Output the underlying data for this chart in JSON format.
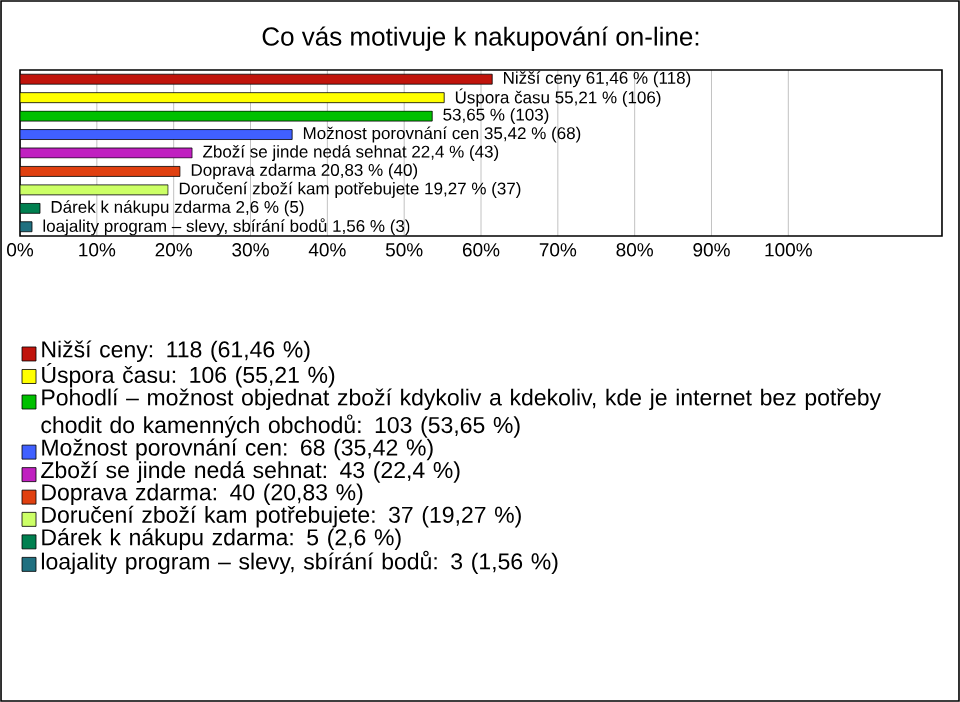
{
  "chart_data": {
    "type": "bar",
    "orientation": "horizontal",
    "title": "Co vás motivuje k nakupování on-line:",
    "categories": [
      null,
      null,
      null,
      null,
      null,
      null,
      null,
      null,
      null
    ],
    "xlim": [
      0,
      120
    ],
    "xticks": [
      {
        "value": 0,
        "label": "0%"
      },
      {
        "value": 10,
        "label": "10%"
      },
      {
        "value": 20,
        "label": "20%"
      },
      {
        "value": 30,
        "label": "30%"
      },
      {
        "value": 40,
        "label": "40%"
      },
      {
        "value": 50,
        "label": "50%"
      },
      {
        "value": 60,
        "label": "60%"
      },
      {
        "value": 70,
        "label": "70%"
      },
      {
        "value": 80,
        "label": "80%"
      },
      {
        "value": 90,
        "label": "90%"
      },
      {
        "value": 100,
        "label": "100%"
      }
    ],
    "grid": "x",
    "legend": "bottom",
    "series": [
      {
        "name": "Nižší ceny: 118 (61,46 %)",
        "color": "#c0140c",
        "values": [
          61.46,
          null,
          null,
          null,
          null,
          null,
          null,
          null,
          null
        ],
        "value_labels": [
          "Nižší ceny 61,46 % (118)",
          null,
          null,
          null,
          null,
          null,
          null,
          null,
          null
        ]
      },
      {
        "name": "Úspora času: 106 (55,21 %)",
        "color": "#ffff00",
        "values": [
          null,
          55.21,
          null,
          null,
          null,
          null,
          null,
          null,
          null
        ],
        "value_labels": [
          null,
          "Úspora času 55,21 % (106)",
          null,
          null,
          null,
          null,
          null,
          null,
          null
        ]
      },
      {
        "name": "Pohodlí – možnost objednat zboží kdykoliv a kdekoliv, kde je internet bez potřeby chodit do kamenných obchodů: 103 (53,65 %)",
        "color": "#00c000",
        "values": [
          null,
          null,
          53.65,
          null,
          null,
          null,
          null,
          null,
          null
        ],
        "value_labels": [
          null,
          null,
          "53,65 % (103)",
          null,
          null,
          null,
          null,
          null,
          null
        ]
      },
      {
        "name": "Možnost porovnání cen: 68 (35,42 %)",
        "color": "#4060ff",
        "values": [
          null,
          null,
          null,
          35.42,
          null,
          null,
          null,
          null,
          null
        ],
        "value_labels": [
          null,
          null,
          null,
          "Možnost porovnání cen 35,42 % (68)",
          null,
          null,
          null,
          null,
          null
        ]
      },
      {
        "name": "Zboží se jinde nedá sehnat: 43 (22,4 %)",
        "color": "#c020c0",
        "values": [
          null,
          null,
          null,
          null,
          22.4,
          null,
          null,
          null,
          null
        ],
        "value_labels": [
          null,
          null,
          null,
          null,
          "Zboží se jinde nedá sehnat 22,4 % (43)",
          null,
          null,
          null,
          null
        ]
      },
      {
        "name": "Doprava zdarma: 40 (20,83 %)",
        "color": "#e04010",
        "values": [
          null,
          null,
          null,
          null,
          null,
          20.83,
          null,
          null,
          null
        ],
        "value_labels": [
          null,
          null,
          null,
          null,
          null,
          "Doprava zdarma 20,83 % (40)",
          null,
          null,
          null
        ]
      },
      {
        "name": "Doručení zboží kam potřebujete: 37 (19,27 %)",
        "color": "#ccff66",
        "values": [
          null,
          null,
          null,
          null,
          null,
          null,
          19.27,
          null,
          null
        ],
        "value_labels": [
          null,
          null,
          null,
          null,
          null,
          null,
          "Doručení zboží kam potřebujete 19,27 % (37)",
          null,
          null
        ]
      },
      {
        "name": "Dárek k nákupu zdarma: 5 (2,6 %)",
        "color": "#008050",
        "values": [
          null,
          null,
          null,
          null,
          null,
          null,
          null,
          2.6,
          null
        ],
        "value_labels": [
          null,
          null,
          null,
          null,
          null,
          null,
          null,
          "Dárek k nákupu zdarma 2,6 % (5)",
          null
        ]
      },
      {
        "name": "loajality program – slevy, sbírání bodů: 3 (1,56 %)",
        "color": "#207080",
        "values": [
          null,
          null,
          null,
          null,
          null,
          null,
          null,
          null,
          1.56
        ],
        "value_labels": [
          null,
          null,
          null,
          null,
          null,
          null,
          null,
          null,
          "loajality program – slevy, sbírání bodů 1,56 % (3)"
        ]
      }
    ]
  }
}
